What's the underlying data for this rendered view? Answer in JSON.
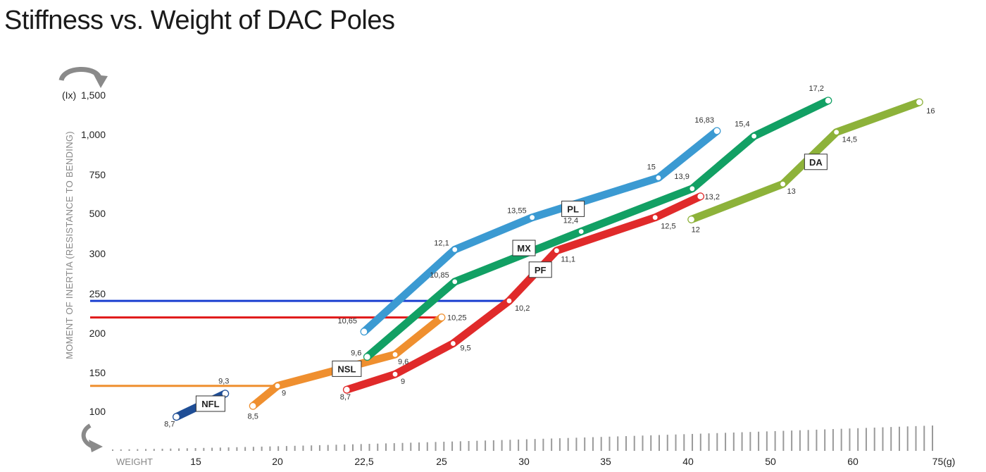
{
  "title": "Stiffness vs. Weight of DAC Poles",
  "chart_data": {
    "type": "line",
    "title": "Stiffness vs. Weight of DAC Poles",
    "ylabel": "MOMENT OF INERTIA (RESISTANCE TO BENDING)",
    "yunit": "(Ix)",
    "xlabel": "WEIGHT",
    "xunit": "(g)",
    "y_ticks": [
      "100",
      "150",
      "200",
      "250",
      "300",
      "500",
      "750",
      "1,000",
      "1,500"
    ],
    "x_ticks": [
      "15",
      "20",
      "22,5",
      "25",
      "30",
      "35",
      "40",
      "50",
      "60",
      "75(g)"
    ],
    "grid": false,
    "colors": {
      "NFL": "#1f4e96",
      "NSL": "#ef8f2f",
      "PF": "#e02a2a",
      "MX": "#12a064",
      "PL": "#3b9ad2",
      "DA": "#8db23a",
      "ref_blue": "#1a3fd0",
      "ref_red": "#e01818",
      "ref_orange": "#ef8f2f"
    },
    "series": [
      {
        "name": "NFL",
        "label_point": [
          15.9,
          110
        ],
        "points": [
          [
            14.3,
            93,
            "8,7"
          ],
          [
            16.8,
            123,
            "9,3"
          ]
        ]
      },
      {
        "name": "NSL",
        "label_point": [
          22.0,
          155
        ],
        "points": [
          [
            18.5,
            107,
            "8,5"
          ],
          [
            20.0,
            133,
            "9"
          ],
          [
            23.5,
            173,
            "9,6"
          ],
          [
            25.0,
            220,
            "10,25"
          ]
        ]
      },
      {
        "name": "PF",
        "label_point": [
          31.0,
          280
        ],
        "points": [
          [
            22.0,
            128,
            "8,7"
          ],
          [
            23.5,
            148,
            "9"
          ],
          [
            25.7,
            187,
            "9,5"
          ],
          [
            29.1,
            241,
            "10,2"
          ],
          [
            32.0,
            315,
            "11,1"
          ],
          [
            38.0,
            480,
            "12,5"
          ],
          [
            41.5,
            610,
            "13,2"
          ]
        ]
      },
      {
        "name": "MX",
        "label_point": [
          30.0,
          328
        ],
        "points": [
          [
            22.6,
            170,
            "9,6"
          ],
          [
            25.8,
            265,
            "10,85"
          ],
          [
            33.5,
            410,
            "12,4"
          ],
          [
            40.5,
            660,
            "13,9"
          ],
          [
            48.0,
            990,
            "15,4"
          ],
          [
            57.0,
            1430,
            "17,2"
          ]
        ]
      },
      {
        "name": "PL",
        "label_point": [
          33.0,
          530
        ],
        "points": [
          [
            22.5,
            202,
            "10,65"
          ],
          [
            25.8,
            320,
            "12,1"
          ],
          [
            30.5,
            480,
            "13,55"
          ],
          [
            38.2,
            730,
            "15"
          ],
          [
            43.5,
            1045,
            "16,83"
          ]
        ]
      },
      {
        "name": "DA",
        "label_point": [
          55.5,
          830
        ],
        "points": [
          [
            40.4,
            470,
            "12"
          ],
          [
            51.5,
            690,
            "13"
          ],
          [
            58.0,
            1030,
            "14,5"
          ],
          [
            71.5,
            1410,
            "16"
          ]
        ]
      }
    ],
    "reference_lines": [
      {
        "y": 241,
        "x_end": 29.1,
        "color": "#1a3fd0"
      },
      {
        "y": 220,
        "x_end": 25.0,
        "color": "#e01818"
      },
      {
        "y": 133,
        "x_end": 20.0,
        "color": "#ef8f2f"
      }
    ]
  }
}
